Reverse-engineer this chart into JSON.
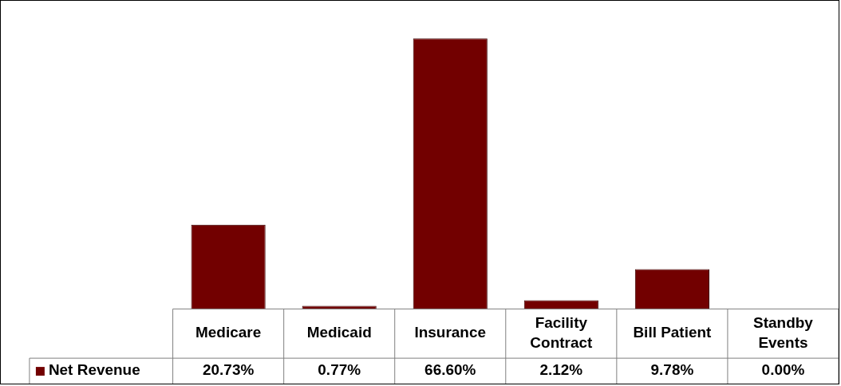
{
  "chart_data": {
    "type": "bar",
    "categories": [
      "Medicare",
      "Medicaid",
      "Insurance",
      "Facility Contract",
      "Bill Patient",
      "Standby Events"
    ],
    "series": [
      {
        "name": "Net Revenue",
        "color": "#720000",
        "values": [
          20.73,
          0.77,
          66.6,
          2.12,
          9.78,
          0.0
        ],
        "value_labels": [
          "20.73%",
          "0.77%",
          "66.60%",
          "2.12%",
          "9.78%",
          "0.00%"
        ]
      }
    ],
    "legend": "bottom left"
  }
}
